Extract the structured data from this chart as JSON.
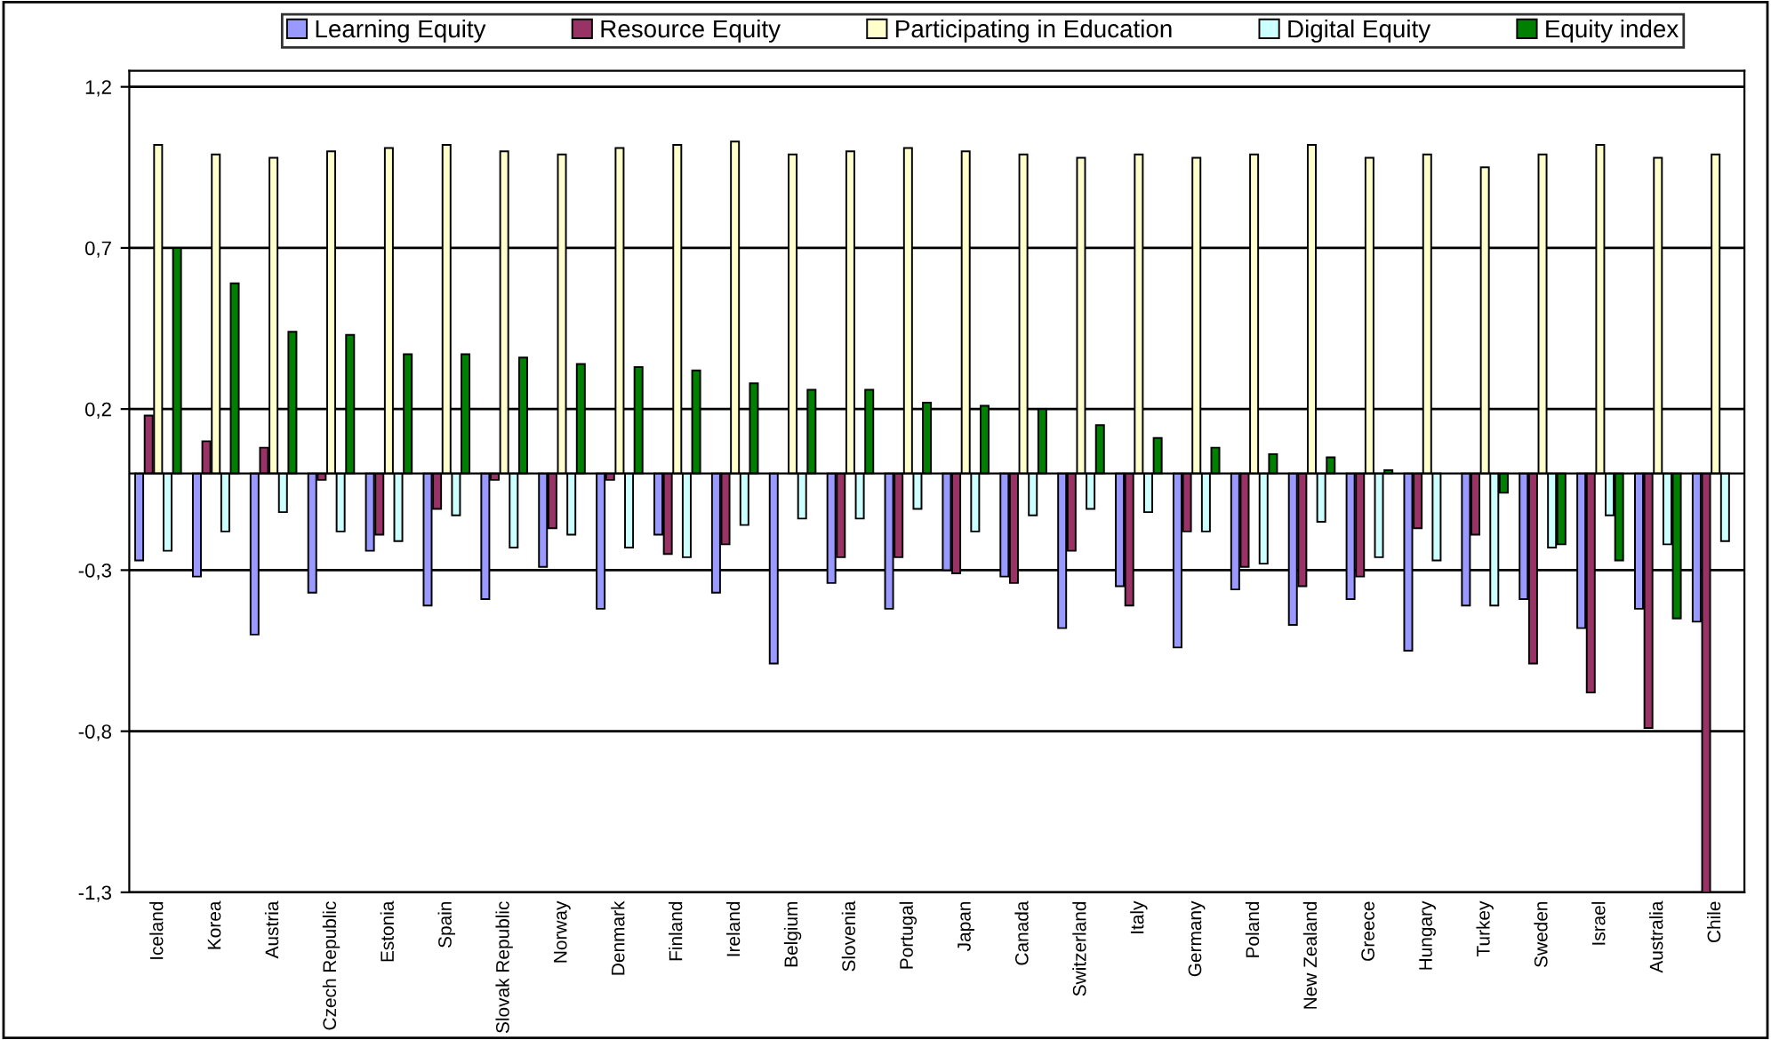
{
  "chart_data": {
    "type": "bar",
    "categories": [
      "Iceland",
      "Korea",
      "Austria",
      "Czech Republic",
      "Estonia",
      "Spain",
      "Slovak Republic",
      "Norway",
      "Denmark",
      "Finland",
      "Ireland",
      "Belgium",
      "Slovenia",
      "Portugal",
      "Japan",
      "Canada",
      "Switzerland",
      "Italy",
      "Germany",
      "Poland",
      "New Zealand",
      "Greece",
      "Hungary",
      "Turkey",
      "Sweden",
      "Israel",
      "Australia",
      "Chile"
    ],
    "series": [
      {
        "name": "Learning Equity",
        "color": "#9999ff",
        "values": [
          -0.27,
          -0.32,
          -0.5,
          -0.37,
          -0.24,
          -0.41,
          -0.39,
          -0.29,
          -0.42,
          -0.19,
          -0.37,
          -0.59,
          -0.34,
          -0.42,
          -0.3,
          -0.32,
          -0.48,
          -0.35,
          -0.54,
          -0.36,
          -0.47,
          -0.39,
          -0.55,
          -0.41,
          -0.39,
          -0.48,
          -0.42,
          -0.46
        ]
      },
      {
        "name": "Resource Equity",
        "color": "#993366",
        "values": [
          0.18,
          0.1,
          0.08,
          -0.02,
          -0.19,
          -0.11,
          -0.02,
          -0.17,
          -0.02,
          -0.25,
          -0.22,
          null,
          -0.26,
          -0.26,
          -0.31,
          -0.34,
          -0.24,
          -0.41,
          -0.18,
          -0.29,
          -0.35,
          -0.32,
          -0.17,
          -0.19,
          -0.59,
          -0.68,
          -0.79,
          -1.3
        ]
      },
      {
        "name": "Participating in Education",
        "color": "#ffffcc",
        "values": [
          1.02,
          0.99,
          0.98,
          1.0,
          1.01,
          1.02,
          1.0,
          0.99,
          1.01,
          1.02,
          1.03,
          0.99,
          1.0,
          1.01,
          1.0,
          0.99,
          0.98,
          0.99,
          0.98,
          0.99,
          1.02,
          0.98,
          0.99,
          0.95,
          0.99,
          1.02,
          0.98,
          0.99
        ]
      },
      {
        "name": "Digital Equity",
        "color": "#ccffff",
        "values": [
          -0.24,
          -0.18,
          -0.12,
          -0.18,
          -0.21,
          -0.13,
          -0.23,
          -0.19,
          -0.23,
          -0.26,
          -0.16,
          -0.14,
          -0.14,
          -0.11,
          -0.18,
          -0.13,
          -0.11,
          -0.12,
          -0.18,
          -0.28,
          -0.15,
          -0.26,
          -0.27,
          -0.41,
          -0.23,
          -0.13,
          -0.22,
          -0.21
        ]
      },
      {
        "name": "Equity index",
        "color": "#008000",
        "values": [
          0.7,
          0.59,
          0.44,
          0.43,
          0.37,
          0.37,
          0.36,
          0.34,
          0.33,
          0.32,
          0.28,
          0.26,
          0.26,
          0.22,
          0.21,
          0.2,
          0.15,
          0.11,
          0.08,
          0.06,
          0.05,
          0.01,
          null,
          -0.06,
          -0.22,
          -0.27,
          -0.45,
          null
        ]
      }
    ],
    "ylim": [
      -1.3,
      1.25
    ],
    "yticks": [
      {
        "value": -1.3,
        "label": "-1,3"
      },
      {
        "value": -0.8,
        "label": "-0,8"
      },
      {
        "value": -0.3,
        "label": "-0,3"
      },
      {
        "value": 0.2,
        "label": "0,2"
      },
      {
        "value": 0.7,
        "label": "0,7"
      },
      {
        "value": 1.2,
        "label": "1,2"
      }
    ],
    "grid": "y",
    "legend": "top"
  }
}
